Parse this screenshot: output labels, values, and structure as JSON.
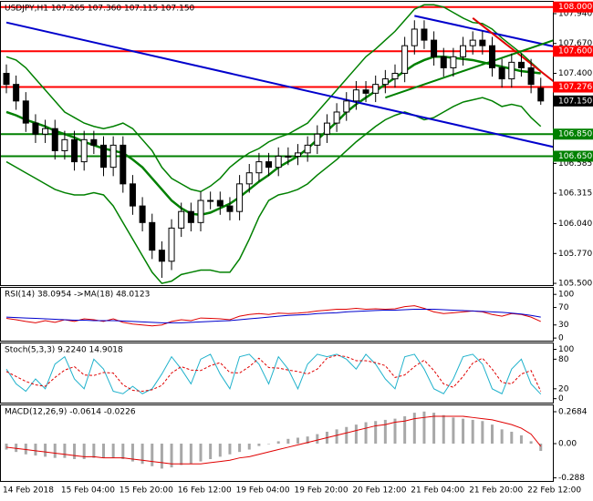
{
  "chart_data": [
    {
      "type": "candlestick",
      "title": "USDJPY,H1  107.265 107.360 107.115 107.150",
      "categories": [
        "14 Feb 2018",
        null,
        null,
        null,
        null,
        null,
        "15 Feb 04:00",
        null,
        null,
        null,
        null,
        null,
        "15 Feb 20:00",
        null,
        null,
        null,
        null,
        null,
        "16 Feb 12:00",
        null,
        null,
        null,
        null,
        null,
        "19 Feb 04:00",
        null,
        null,
        null,
        null,
        null,
        "19 Feb 20:00",
        null,
        null,
        null,
        null,
        null,
        "20 Feb 12:00",
        null,
        null,
        null,
        null,
        null,
        "21 Feb 04:00",
        null,
        null,
        null,
        null,
        null,
        "21 Feb 20:00",
        null,
        null,
        null,
        null,
        null,
        "22 Feb 12:00",
        null
      ],
      "open": [
        107.4,
        107.3,
        107.15,
        106.95,
        106.85,
        106.9,
        106.7,
        106.8,
        106.6,
        106.8,
        106.75,
        106.55,
        106.75,
        106.4,
        106.2,
        106.05,
        105.8,
        105.7,
        106.0,
        106.15,
        106.05,
        106.25,
        106.25,
        106.2,
        106.15,
        106.4,
        106.5,
        106.6,
        106.55,
        106.65,
        106.65,
        106.68,
        106.75,
        106.85,
        106.95,
        107.05,
        107.15,
        107.25,
        107.22,
        107.3,
        107.35,
        107.4,
        107.65,
        107.8,
        107.7,
        107.55,
        107.45,
        107.55,
        107.65,
        107.7,
        107.65,
        107.45,
        107.35,
        107.5,
        107.45,
        107.265
      ],
      "high": [
        107.48,
        107.38,
        107.23,
        107.03,
        106.98,
        106.98,
        106.88,
        106.88,
        106.88,
        106.88,
        106.83,
        106.83,
        106.83,
        106.48,
        106.28,
        106.13,
        105.88,
        106.08,
        106.23,
        106.23,
        106.33,
        106.33,
        106.33,
        106.28,
        106.48,
        106.58,
        106.68,
        106.68,
        106.73,
        106.73,
        106.76,
        106.83,
        106.93,
        107.03,
        107.13,
        107.23,
        107.33,
        107.33,
        107.38,
        107.43,
        107.48,
        107.73,
        107.88,
        107.88,
        107.78,
        107.63,
        107.63,
        107.73,
        107.78,
        107.78,
        107.73,
        107.53,
        107.58,
        107.58,
        107.53,
        107.36
      ],
      "low": [
        107.22,
        107.07,
        106.87,
        106.77,
        106.77,
        106.62,
        106.62,
        106.52,
        106.52,
        106.67,
        106.47,
        106.47,
        106.32,
        106.12,
        105.97,
        105.72,
        105.55,
        105.62,
        105.92,
        105.97,
        105.97,
        106.17,
        106.12,
        106.07,
        106.07,
        106.32,
        106.42,
        106.47,
        106.47,
        106.57,
        106.57,
        106.6,
        106.67,
        106.77,
        106.87,
        106.97,
        107.07,
        107.14,
        107.14,
        107.22,
        107.27,
        107.32,
        107.57,
        107.62,
        107.47,
        107.37,
        107.37,
        107.47,
        107.57,
        107.57,
        107.37,
        107.27,
        107.27,
        107.37,
        107.22,
        107.115
      ],
      "close": [
        107.3,
        107.15,
        106.95,
        106.85,
        106.9,
        106.7,
        106.8,
        106.6,
        106.8,
        106.75,
        106.55,
        106.75,
        106.4,
        106.2,
        106.05,
        105.8,
        105.7,
        106.0,
        106.15,
        106.05,
        106.25,
        106.25,
        106.2,
        106.15,
        106.4,
        106.5,
        106.6,
        106.55,
        106.65,
        106.65,
        106.68,
        106.75,
        106.85,
        106.95,
        107.05,
        107.15,
        107.25,
        107.22,
        107.3,
        107.35,
        107.4,
        107.65,
        107.8,
        107.7,
        107.55,
        107.45,
        107.55,
        107.65,
        107.7,
        107.65,
        107.45,
        107.35,
        107.5,
        107.45,
        107.3,
        107.15
      ],
      "candle_colors": {
        "up": "#ffffff",
        "down": "#000000"
      },
      "series": [
        {
          "color": "#008000",
          "line_width": 1.5,
          "values": [
            107.55,
            107.52,
            107.45,
            107.35,
            107.25,
            107.15,
            107.05,
            107.0,
            106.95,
            106.92,
            106.9,
            106.92,
            106.95,
            106.9,
            106.8,
            106.7,
            106.55,
            106.45,
            106.4,
            106.35,
            106.33,
            106.38,
            106.45,
            106.55,
            106.62,
            106.68,
            106.72,
            106.78,
            106.82,
            106.85,
            106.9,
            106.95,
            107.05,
            107.15,
            107.25,
            107.35,
            107.45,
            107.55,
            107.62,
            107.7,
            107.78,
            107.88,
            107.98,
            108.02,
            108.02,
            108.0,
            107.95,
            107.9,
            107.86,
            107.85,
            107.8,
            107.72,
            107.65,
            107.58,
            107.5,
            107.42
          ]
        },
        {
          "color": "#008000",
          "line_width": 2.5,
          "values": [
            107.05,
            107.02,
            106.98,
            106.95,
            106.92,
            106.88,
            106.85,
            106.82,
            106.78,
            106.75,
            106.72,
            106.7,
            106.68,
            106.62,
            106.55,
            106.45,
            106.35,
            106.25,
            106.18,
            106.13,
            106.12,
            106.14,
            106.18,
            106.22,
            106.28,
            106.35,
            106.42,
            106.48,
            106.55,
            106.6,
            106.65,
            106.72,
            106.8,
            106.88,
            106.96,
            107.05,
            107.12,
            107.18,
            107.24,
            107.3,
            107.36,
            107.42,
            107.48,
            107.52,
            107.55,
            107.55,
            107.54,
            107.53,
            107.52,
            107.5,
            107.48,
            107.46,
            107.44,
            107.42,
            107.41,
            107.4
          ]
        },
        {
          "color": "#008000",
          "line_width": 1.5,
          "values": [
            106.6,
            106.55,
            106.5,
            106.45,
            106.4,
            106.35,
            106.32,
            106.3,
            106.3,
            106.32,
            106.3,
            106.2,
            106.05,
            105.9,
            105.75,
            105.6,
            105.5,
            105.52,
            105.58,
            105.6,
            105.62,
            105.62,
            105.6,
            105.6,
            105.72,
            105.9,
            106.1,
            106.25,
            106.3,
            106.32,
            106.35,
            106.4,
            106.48,
            106.55,
            106.62,
            106.7,
            106.78,
            106.85,
            106.92,
            106.98,
            107.02,
            107.05,
            107.02,
            106.98,
            107.0,
            107.05,
            107.1,
            107.14,
            107.16,
            107.18,
            107.15,
            107.1,
            107.12,
            107.1,
            107.0,
            106.92
          ]
        }
      ],
      "trendlines": [
        {
          "color": "#0000cc",
          "x": [
            0,
            57
          ],
          "y": [
            107.86,
            106.72
          ]
        },
        {
          "color": "#0000cc",
          "x": [
            42,
            57
          ],
          "y": [
            107.92,
            107.63
          ]
        },
        {
          "color": "#e00000",
          "x": [
            48,
            57
          ],
          "y": [
            107.9,
            107.28
          ]
        },
        {
          "color": "#008000",
          "x": [
            39,
            57
          ],
          "y": [
            107.18,
            107.72
          ]
        }
      ],
      "levels": [
        {
          "value": 108,
          "label": "108.000",
          "color": "#ff0000"
        },
        {
          "value": 107.6,
          "label": "107.600",
          "color": "#ff0000"
        },
        {
          "value": 107.276,
          "color": "#ff0000"
        },
        {
          "value": 106.85,
          "label": "106.850",
          "color": "#008000"
        },
        {
          "value": 106.65,
          "label": "106.650",
          "color": "#008000"
        }
      ],
      "last_price": {
        "value": 107.15,
        "label": "107.150",
        "color": "#000000"
      },
      "ylim": [
        105.484,
        108.047
      ],
      "yticks": [
        {
          "value": 107.94,
          "label": "107.940"
        },
        {
          "value": 107.67,
          "label": "107.670"
        },
        {
          "value": 107.4,
          "label": "107.400"
        },
        106.585,
        106.315,
        {
          "value": 106.04,
          "label": "106.040"
        },
        {
          "value": 105.77,
          "label": "105.770"
        },
        {
          "value": 105.5,
          "label": "105.500"
        }
      ]
    },
    {
      "type": "line",
      "title": "RSI(14) 38.0954 ->MA(18) 48.0123",
      "series": [
        {
          "color": "#e00000",
          "values": [
            45,
            42,
            38,
            35,
            40,
            36,
            42,
            38,
            44,
            42,
            38,
            44,
            36,
            32,
            30,
            28,
            30,
            38,
            42,
            40,
            46,
            45,
            44,
            42,
            50,
            54,
            56,
            54,
            57,
            56,
            57,
            59,
            62,
            64,
            66,
            66,
            68,
            66,
            67,
            66,
            67,
            72,
            74,
            68,
            60,
            56,
            58,
            60,
            62,
            60,
            54,
            50,
            56,
            54,
            48,
            38
          ]
        },
        {
          "color": "#0000cc",
          "values": [
            48,
            47,
            46,
            45,
            44,
            43,
            42,
            41,
            41,
            40,
            40,
            40,
            39,
            38,
            37,
            36,
            35,
            35,
            35,
            36,
            37,
            38,
            39,
            40,
            42,
            44,
            46,
            48,
            50,
            52,
            53,
            54,
            56,
            57,
            58,
            60,
            61,
            62,
            63,
            64,
            64,
            65,
            66,
            66,
            66,
            65,
            64,
            63,
            62,
            61,
            60,
            59,
            57,
            55,
            52,
            48
          ]
        }
      ],
      "ylim": [
        -6,
        115
      ],
      "yticks": [
        100,
        70,
        30,
        0
      ]
    },
    {
      "type": "line",
      "title": "Stoch(5,3,3) 9.2240 14.9018",
      "series": [
        {
          "color": "#20b2cc",
          "values": [
            60,
            30,
            15,
            40,
            20,
            70,
            85,
            40,
            20,
            80,
            60,
            15,
            10,
            25,
            10,
            20,
            50,
            85,
            60,
            30,
            80,
            90,
            50,
            20,
            85,
            90,
            70,
            30,
            85,
            60,
            20,
            70,
            90,
            85,
            90,
            80,
            60,
            90,
            70,
            40,
            20,
            85,
            90,
            60,
            20,
            10,
            40,
            85,
            90,
            70,
            20,
            10,
            60,
            80,
            30,
            9.224
          ]
        },
        {
          "color": "#e00000",
          "dashed": true,
          "values": [
            55,
            45,
            35,
            28,
            25,
            43,
            58,
            65,
            48,
            47,
            53,
            52,
            28,
            17,
            15,
            18,
            27,
            52,
            65,
            58,
            57,
            67,
            73,
            53,
            52,
            65,
            82,
            63,
            62,
            58,
            55,
            50,
            60,
            82,
            88,
            85,
            77,
            77,
            73,
            67,
            43,
            48,
            65,
            78,
            57,
            30,
            23,
            45,
            72,
            82,
            60,
            33,
            30,
            50,
            57,
            14.9018
          ]
        }
      ],
      "ylim": [
        -8,
        112
      ],
      "yticks": [
        100,
        80,
        20,
        0
      ]
    },
    {
      "type": "bar-line",
      "title": "MACD(12,26,9) -0.0614 -0.0226",
      "series": [
        {
          "type": "bar",
          "color": "#a8a8a8",
          "values": [
            -0.05,
            -0.07,
            -0.09,
            -0.1,
            -0.11,
            -0.12,
            -0.12,
            -0.13,
            -0.13,
            -0.12,
            -0.12,
            -0.12,
            -0.13,
            -0.15,
            -0.17,
            -0.19,
            -0.21,
            -0.2,
            -0.18,
            -0.17,
            -0.15,
            -0.13,
            -0.11,
            -0.09,
            -0.07,
            -0.05,
            -0.02,
            0.0,
            0.02,
            0.04,
            0.05,
            0.06,
            0.08,
            0.1,
            0.12,
            0.14,
            0.16,
            0.18,
            0.19,
            0.2,
            0.21,
            0.23,
            0.26,
            0.27,
            0.26,
            0.24,
            0.22,
            0.21,
            0.2,
            0.19,
            0.16,
            0.12,
            0.1,
            0.07,
            0.02,
            -0.0614
          ]
        },
        {
          "type": "line",
          "color": "#e00000",
          "values": [
            -0.03,
            -0.04,
            -0.05,
            -0.06,
            -0.07,
            -0.08,
            -0.09,
            -0.1,
            -0.11,
            -0.11,
            -0.12,
            -0.12,
            -0.12,
            -0.13,
            -0.14,
            -0.15,
            -0.16,
            -0.17,
            -0.17,
            -0.17,
            -0.17,
            -0.16,
            -0.15,
            -0.14,
            -0.12,
            -0.11,
            -0.09,
            -0.07,
            -0.05,
            -0.03,
            -0.01,
            0.01,
            0.03,
            0.05,
            0.07,
            0.09,
            0.11,
            0.13,
            0.15,
            0.16,
            0.18,
            0.19,
            0.21,
            0.22,
            0.23,
            0.23,
            0.23,
            0.23,
            0.22,
            0.21,
            0.2,
            0.18,
            0.16,
            0.13,
            0.08,
            -0.0226
          ]
        }
      ],
      "ylim": [
        -0.314,
        0.322
      ],
      "yticks": [
        0.2684,
        {
          "value": 0,
          "label": "0.00"
        },
        -0.288
      ]
    }
  ]
}
